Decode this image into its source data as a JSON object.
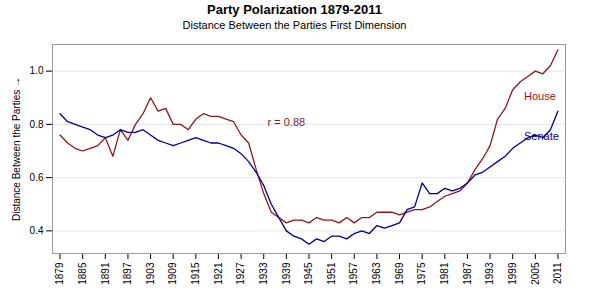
{
  "chart_data": {
    "type": "line",
    "title": "Party Polarization 1879-2011",
    "subtitle": "Distance Between the Parties First Dimension",
    "ylabel": "Distance Between the Parties",
    "x": [
      1879,
      1881,
      1883,
      1885,
      1887,
      1889,
      1891,
      1893,
      1895,
      1897,
      1899,
      1901,
      1903,
      1905,
      1907,
      1909,
      1911,
      1913,
      1915,
      1917,
      1919,
      1921,
      1923,
      1925,
      1927,
      1929,
      1931,
      1933,
      1935,
      1937,
      1939,
      1941,
      1943,
      1945,
      1947,
      1949,
      1951,
      1953,
      1955,
      1957,
      1959,
      1961,
      1963,
      1965,
      1967,
      1969,
      1971,
      1973,
      1975,
      1977,
      1979,
      1981,
      1983,
      1985,
      1987,
      1989,
      1991,
      1993,
      1995,
      1997,
      1999,
      2001,
      2003,
      2005,
      2007,
      2009,
      2011
    ],
    "series": [
      {
        "name": "House",
        "color": "#8B1A1A",
        "values": [
          0.76,
          0.73,
          0.71,
          0.7,
          0.71,
          0.72,
          0.75,
          0.68,
          0.78,
          0.74,
          0.8,
          0.84,
          0.9,
          0.85,
          0.86,
          0.8,
          0.8,
          0.78,
          0.82,
          0.84,
          0.83,
          0.83,
          0.82,
          0.81,
          0.76,
          0.73,
          0.63,
          0.54,
          0.47,
          0.45,
          0.43,
          0.44,
          0.44,
          0.43,
          0.45,
          0.44,
          0.44,
          0.43,
          0.45,
          0.43,
          0.45,
          0.45,
          0.47,
          0.47,
          0.47,
          0.46,
          0.47,
          0.48,
          0.48,
          0.49,
          0.51,
          0.53,
          0.54,
          0.55,
          0.58,
          0.63,
          0.67,
          0.72,
          0.82,
          0.86,
          0.93,
          0.96,
          0.98,
          1.0,
          0.99,
          1.02,
          1.08
        ]
      },
      {
        "name": "Senate",
        "color": "#00008B",
        "values": [
          0.84,
          0.81,
          0.8,
          0.79,
          0.78,
          0.76,
          0.75,
          0.76,
          0.78,
          0.77,
          0.77,
          0.78,
          0.76,
          0.74,
          0.73,
          0.72,
          0.73,
          0.74,
          0.75,
          0.74,
          0.73,
          0.73,
          0.72,
          0.71,
          0.69,
          0.66,
          0.62,
          0.57,
          0.5,
          0.45,
          0.4,
          0.38,
          0.37,
          0.35,
          0.37,
          0.36,
          0.38,
          0.38,
          0.37,
          0.39,
          0.4,
          0.39,
          0.42,
          0.41,
          0.42,
          0.43,
          0.48,
          0.49,
          0.58,
          0.54,
          0.54,
          0.56,
          0.55,
          0.56,
          0.58,
          0.61,
          0.62,
          0.64,
          0.66,
          0.68,
          0.71,
          0.73,
          0.75,
          0.76,
          0.75,
          0.78,
          0.85
        ]
      }
    ],
    "annotations": [
      {
        "text": "r = 0.88",
        "x": 1934,
        "y": 0.795,
        "color": "#8B1A1A"
      },
      {
        "text": "House",
        "x": 2002,
        "y": 0.89,
        "color": "#8B1A1A"
      },
      {
        "text": "Senate",
        "x": 2002,
        "y": 0.74,
        "color": "#00008B"
      }
    ],
    "xlim": [
      1877,
      2013
    ],
    "xticks": [
      1879,
      1885,
      1891,
      1897,
      1903,
      1909,
      1915,
      1921,
      1927,
      1933,
      1939,
      1945,
      1951,
      1957,
      1963,
      1969,
      1975,
      1981,
      1987,
      1993,
      1999,
      2005,
      2011
    ],
    "ylim": [
      0.315,
      1.1
    ],
    "yticks": [
      0.4,
      0.6,
      0.8,
      {
        "value": 1.0,
        "label": "1.0"
      }
    ],
    "grid": true
  }
}
